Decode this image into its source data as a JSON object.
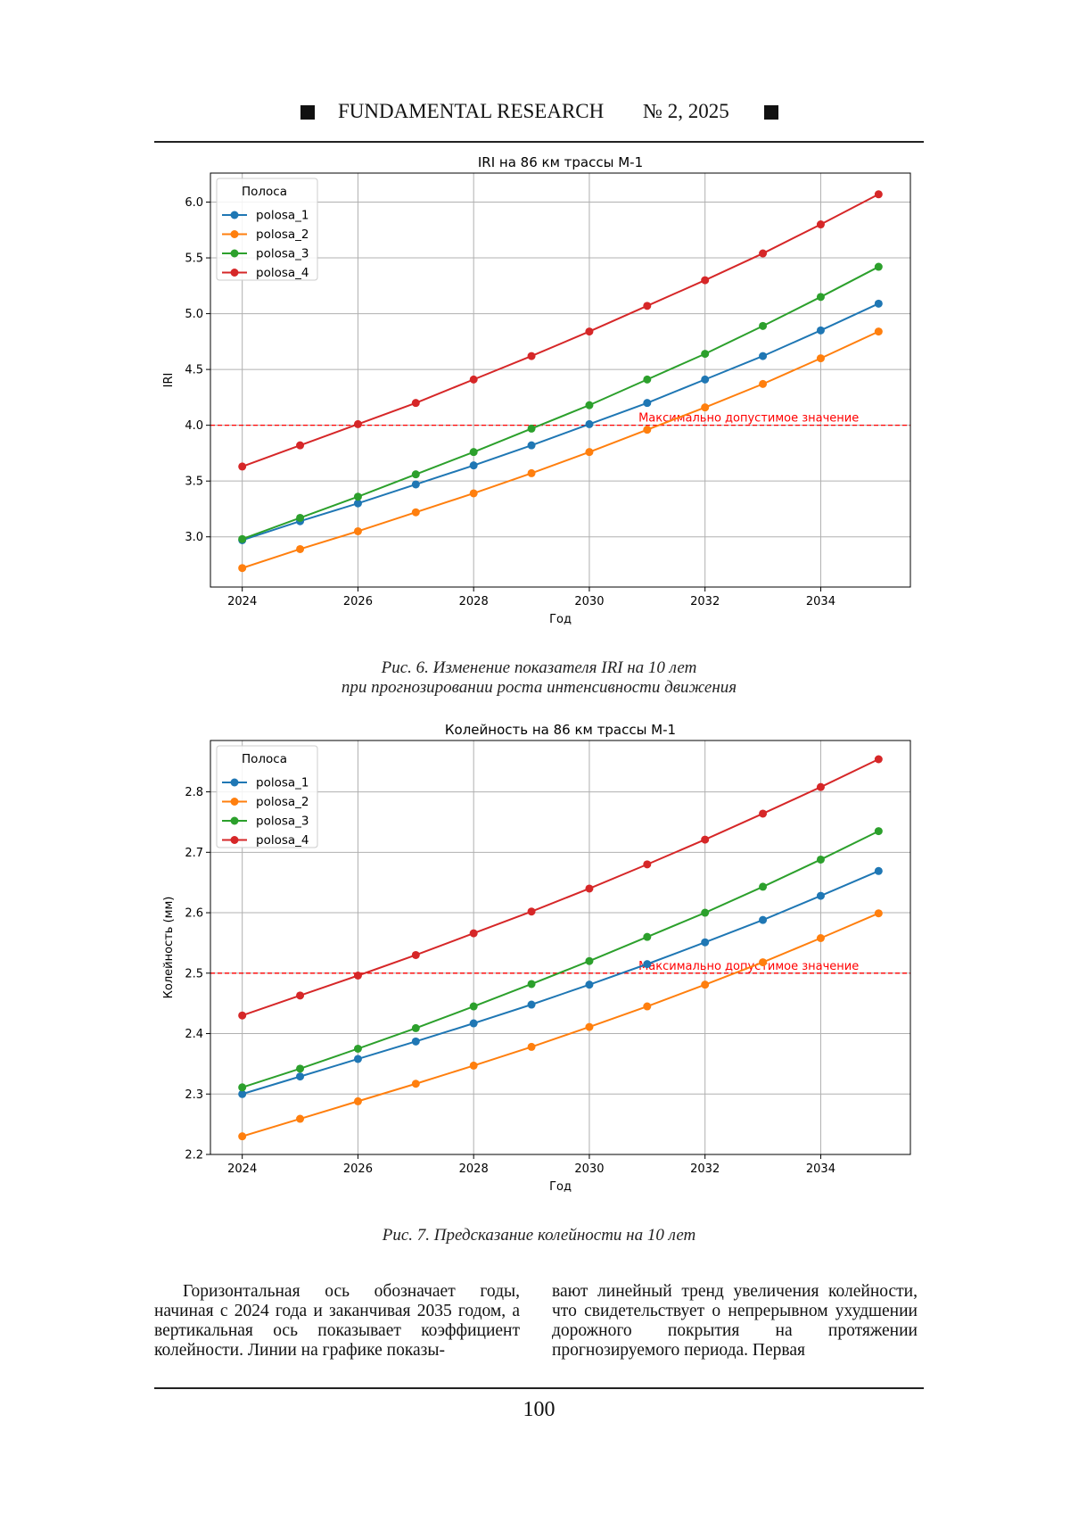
{
  "header": {
    "journal": "FUNDAMENTAL RESEARCH",
    "issue": "№ 2,  2025"
  },
  "colors": {
    "polosa_1": "#1f77b4",
    "polosa_2": "#ff7f0e",
    "polosa_3": "#2ca02c",
    "polosa_4": "#d62728",
    "threshold": "#ff0000"
  },
  "figures": [
    {
      "caption_line1": "Рис. 6. Изменение показателя IRI на 10 лет",
      "caption_line2": "при прогнозировании роста интенсивности движения"
    },
    {
      "caption_line1": "Рис. 7. Предсказание колейности на 10 лет",
      "caption_line2": ""
    }
  ],
  "chart_data": [
    {
      "type": "line",
      "title": "IRI на 86 км трассы М-1",
      "xlabel": "Год",
      "ylabel": "IRI",
      "x": [
        2024,
        2025,
        2026,
        2027,
        2028,
        2029,
        2030,
        2031,
        2032,
        2033,
        2034,
        2035
      ],
      "xlim": [
        2023.45,
        2035.55
      ],
      "ylim": [
        2.55,
        6.26
      ],
      "xticks": [
        2024,
        2026,
        2028,
        2030,
        2032,
        2034
      ],
      "yticks": [
        "3.0",
        "3.5",
        "4.0",
        "4.5",
        "5.0",
        "5.5",
        "6.0"
      ],
      "grid": true,
      "legend": {
        "title": "Полоса",
        "placement": "top-left"
      },
      "series": [
        {
          "name": "polosa_1",
          "values": [
            2.97,
            3.14,
            3.3,
            3.47,
            3.64,
            3.82,
            4.01,
            4.2,
            4.41,
            4.62,
            4.85,
            5.09
          ]
        },
        {
          "name": "polosa_2",
          "values": [
            2.72,
            2.89,
            3.05,
            3.22,
            3.39,
            3.57,
            3.76,
            3.96,
            4.16,
            4.37,
            4.6,
            4.84
          ]
        },
        {
          "name": "polosa_3",
          "values": [
            2.98,
            3.17,
            3.36,
            3.56,
            3.76,
            3.97,
            4.18,
            4.41,
            4.64,
            4.89,
            5.15,
            5.42
          ]
        },
        {
          "name": "polosa_4",
          "values": [
            3.63,
            3.82,
            4.01,
            4.2,
            4.41,
            4.62,
            4.84,
            5.07,
            5.3,
            5.54,
            5.8,
            6.07
          ]
        }
      ],
      "threshold": {
        "value": 4.0,
        "label": "Максимально допустимое значение"
      }
    },
    {
      "type": "line",
      "title": "Колейность на 86 км трассы М-1",
      "xlabel": "Год",
      "ylabel": "Колейность (мм)",
      "x": [
        2024,
        2025,
        2026,
        2027,
        2028,
        2029,
        2030,
        2031,
        2032,
        2033,
        2034,
        2035
      ],
      "xlim": [
        2023.45,
        2035.55
      ],
      "ylim": [
        2.2,
        2.885
      ],
      "xticks": [
        2024,
        2026,
        2028,
        2030,
        2032,
        2034
      ],
      "yticks": [
        "2.2",
        "2.3",
        "2.4",
        "2.5",
        "2.6",
        "2.7",
        "2.8"
      ],
      "grid": true,
      "legend": {
        "title": "Полоса",
        "placement": "top-left"
      },
      "series": [
        {
          "name": "polosa_1",
          "values": [
            2.3,
            2.329,
            2.358,
            2.387,
            2.417,
            2.448,
            2.481,
            2.515,
            2.551,
            2.588,
            2.628,
            2.669
          ]
        },
        {
          "name": "polosa_2",
          "values": [
            2.23,
            2.259,
            2.288,
            2.317,
            2.347,
            2.378,
            2.411,
            2.445,
            2.481,
            2.518,
            2.558,
            2.599
          ]
        },
        {
          "name": "polosa_3",
          "values": [
            2.311,
            2.342,
            2.375,
            2.409,
            2.445,
            2.482,
            2.52,
            2.56,
            2.6,
            2.643,
            2.688,
            2.735
          ]
        },
        {
          "name": "polosa_4",
          "values": [
            2.43,
            2.463,
            2.496,
            2.53,
            2.566,
            2.602,
            2.64,
            2.68,
            2.721,
            2.764,
            2.808,
            2.854
          ]
        }
      ],
      "threshold": {
        "value": 2.5,
        "label": "Максимально допустимое значение"
      }
    }
  ],
  "body_left": "Горизонтальная ось обозначает годы, начиная с 2024 года и заканчивая 2035 годом, а вертикальная ось показывает коэффициент колейности. Линии на графике показы-",
  "body_right": "вают линейный тренд увеличения колейности, что свидетельствует о непрерывном ухудшении дорожного покрытия на протяжении прогнозируемого периода. Первая",
  "page_number": "100"
}
